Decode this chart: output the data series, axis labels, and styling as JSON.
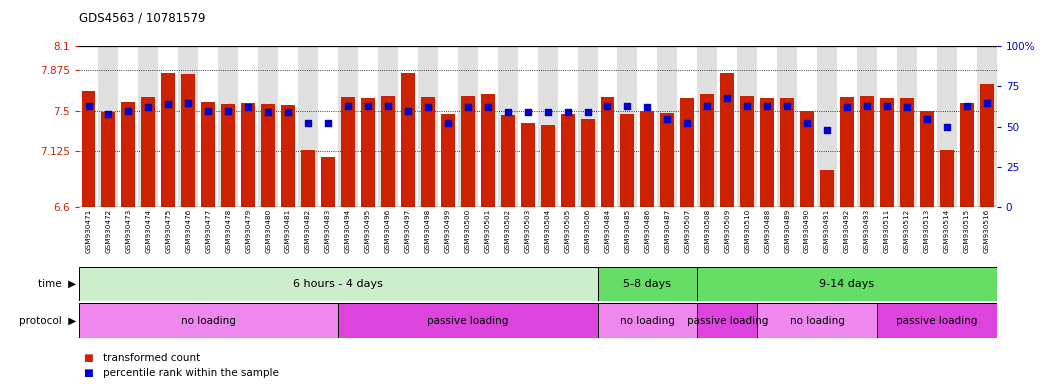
{
  "title": "GDS4563 / 10781579",
  "ylim": [
    6.6,
    8.1
  ],
  "y2lim": [
    0,
    100
  ],
  "yticks": [
    6.6,
    7.125,
    7.5,
    7.875,
    8.1
  ],
  "ytick_labels": [
    "6.6",
    "7.125",
    "7.5",
    "7.875",
    "8.1"
  ],
  "y2ticks": [
    0,
    25,
    50,
    75,
    100
  ],
  "y2tick_labels": [
    "0",
    "25",
    "50",
    "75",
    "100%"
  ],
  "hlines": [
    7.875,
    7.5,
    7.125
  ],
  "samples": [
    "GSM930471",
    "GSM930472",
    "GSM930473",
    "GSM930474",
    "GSM930475",
    "GSM930476",
    "GSM930477",
    "GSM930478",
    "GSM930479",
    "GSM930480",
    "GSM930481",
    "GSM930482",
    "GSM930483",
    "GSM930494",
    "GSM930495",
    "GSM930496",
    "GSM930497",
    "GSM930498",
    "GSM930499",
    "GSM930500",
    "GSM930501",
    "GSM930502",
    "GSM930503",
    "GSM930504",
    "GSM930505",
    "GSM930506",
    "GSM930484",
    "GSM930485",
    "GSM930486",
    "GSM930487",
    "GSM930507",
    "GSM930508",
    "GSM930509",
    "GSM930510",
    "GSM930488",
    "GSM930489",
    "GSM930490",
    "GSM930491",
    "GSM930492",
    "GSM930493",
    "GSM930511",
    "GSM930512",
    "GSM930513",
    "GSM930514",
    "GSM930515",
    "GSM930516"
  ],
  "bar_values": [
    7.68,
    7.49,
    7.58,
    7.63,
    7.85,
    7.84,
    7.58,
    7.56,
    7.57,
    7.56,
    7.55,
    7.13,
    7.07,
    7.63,
    7.62,
    7.64,
    7.85,
    7.63,
    7.47,
    7.64,
    7.65,
    7.46,
    7.38,
    7.37,
    7.47,
    7.42,
    7.63,
    7.47,
    7.5,
    7.48,
    7.62,
    7.65,
    7.85,
    7.64,
    7.62,
    7.62,
    7.5,
    6.95,
    7.63,
    7.64,
    7.62,
    7.62,
    7.5,
    7.13,
    7.57,
    7.75
  ],
  "percentile_values": [
    63,
    58,
    60,
    62,
    64,
    65,
    60,
    60,
    62,
    59,
    59,
    52,
    52,
    63,
    63,
    63,
    60,
    62,
    52,
    62,
    62,
    59,
    59,
    59,
    59,
    59,
    63,
    63,
    62,
    55,
    52,
    63,
    68,
    63,
    63,
    63,
    52,
    48,
    62,
    63,
    63,
    62,
    55,
    50,
    63,
    65
  ],
  "bar_color": "#cc2200",
  "dot_color": "#0000cc",
  "bg_color": "#ffffff",
  "col_alt_color": "#e0e0e0",
  "time_groups": [
    {
      "label": "6 hours - 4 days",
      "start": 0,
      "end": 26,
      "color": "#cceecc"
    },
    {
      "label": "5-8 days",
      "start": 26,
      "end": 31,
      "color": "#66dd66"
    },
    {
      "label": "9-14 days",
      "start": 31,
      "end": 46,
      "color": "#66dd66"
    }
  ],
  "protocol_groups": [
    {
      "label": "no loading",
      "start": 0,
      "end": 13,
      "color": "#ee88ee"
    },
    {
      "label": "passive loading",
      "start": 13,
      "end": 26,
      "color": "#dd44dd"
    },
    {
      "label": "no loading",
      "start": 26,
      "end": 31,
      "color": "#ee88ee"
    },
    {
      "label": "passive loading",
      "start": 31,
      "end": 34,
      "color": "#dd44dd"
    },
    {
      "label": "no loading",
      "start": 34,
      "end": 40,
      "color": "#ee88ee"
    },
    {
      "label": "passive loading",
      "start": 40,
      "end": 46,
      "color": "#dd44dd"
    }
  ],
  "time_label": "time",
  "protocol_label": "protocol",
  "legend_bar_label": "transformed count",
  "legend_dot_label": "percentile rank within the sample",
  "axis_label_color_left": "#cc2200",
  "axis_label_color_right": "#0000cc"
}
